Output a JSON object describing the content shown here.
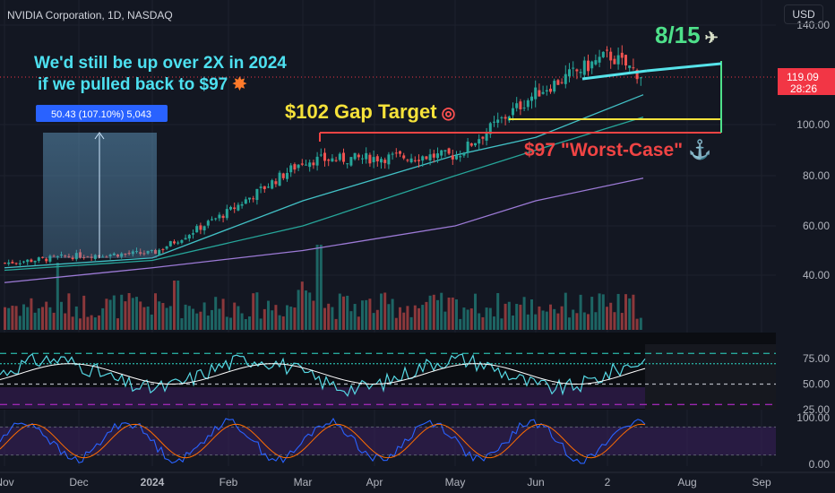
{
  "header": {
    "title": "NVIDIA Corporation, 1D, NASDAQ",
    "currency": "USD"
  },
  "price_badge": {
    "value": "119.09",
    "countdown": "28:26"
  },
  "annotations": {
    "line1": "We'd still be up over 2X in 2024",
    "line2": "if we pulled back to $97",
    "gap_target": "$102 Gap Target",
    "worst_case": "$97 \"Worst-Case\"",
    "date_target": "8/15",
    "measure": "50.43 (107.10%) 5,043"
  },
  "icons": [
    "explosion-icon",
    "target-icon",
    "anchor-icon",
    "money-wings-icon"
  ],
  "colors": {
    "up": "#26a69a",
    "down": "#ef5350",
    "accent": "#2962ff",
    "ma50": "#42c1c6",
    "ma100": "#26a69a",
    "ma200": "#9c7ad6",
    "target_yellow": "#f6e23a",
    "worst_red": "#f04444",
    "cyan_text": "#4de0f0",
    "date_green": "#4ee08a"
  },
  "chart_data": [
    {
      "type": "candlestick",
      "title": "NVIDIA Corporation, 1D, NASDAQ",
      "ylim": [
        30,
        150
      ],
      "y_ticks": [
        40,
        60,
        80,
        100,
        140
      ],
      "y_tick_labels": [
        "40.00",
        "60.00",
        "80.00",
        "100.00",
        "140.00"
      ],
      "x_ticks": [
        "Nov",
        "Dec",
        "2024",
        "Feb",
        "Mar",
        "Apr",
        "May",
        "Jun",
        "2",
        "Aug",
        "Sep"
      ],
      "close_path": [
        [
          "Nov",
          45
        ],
        [
          "Dec",
          48
        ],
        [
          "2024",
          49
        ],
        [
          "Feb",
          66
        ],
        [
          "Mar",
          86
        ],
        [
          "Apr",
          87
        ],
        [
          "May",
          88
        ],
        [
          "Jun",
          113
        ],
        [
          "2",
          128
        ],
        [
          "Jul 15",
          119
        ]
      ],
      "moving_averages": [
        {
          "label": "MA50",
          "points": [
            [
              "Nov",
              43
            ],
            [
              "2024",
              47
            ],
            [
              "Mar",
              70
            ],
            [
              "May",
              88
            ],
            [
              "Jun",
              95
            ],
            [
              "Jul 15",
              112
            ]
          ]
        },
        {
          "label": "MA100",
          "points": [
            [
              "Nov",
              42
            ],
            [
              "2024",
              46
            ],
            [
              "Mar",
              60
            ],
            [
              "May",
              80
            ],
            [
              "Jun",
              90
            ],
            [
              "Jul 15",
              103
            ]
          ]
        },
        {
          "label": "MA200",
          "points": [
            [
              "Nov",
              37
            ],
            [
              "2024",
              43
            ],
            [
              "Mar",
              50
            ],
            [
              "May",
              60
            ],
            [
              "Jun",
              70
            ],
            [
              "Jul 15",
              79
            ]
          ]
        }
      ],
      "levels": [
        {
          "label": "$102 Gap Target",
          "value": 102
        },
        {
          "label": "$97 \"Worst-Case\"",
          "value": 97
        }
      ],
      "last_price": 119.09
    },
    {
      "type": "line",
      "panel": "RSI",
      "ylim": [
        25,
        85
      ],
      "y_tick_labels": [
        "75.00",
        "50.00",
        "25.00"
      ],
      "guides": [
        80,
        70,
        50,
        30
      ]
    },
    {
      "type": "line",
      "panel": "Stochastic",
      "ylim": [
        0,
        100
      ],
      "y_tick_labels": [
        "100.00",
        "0.00"
      ]
    }
  ]
}
